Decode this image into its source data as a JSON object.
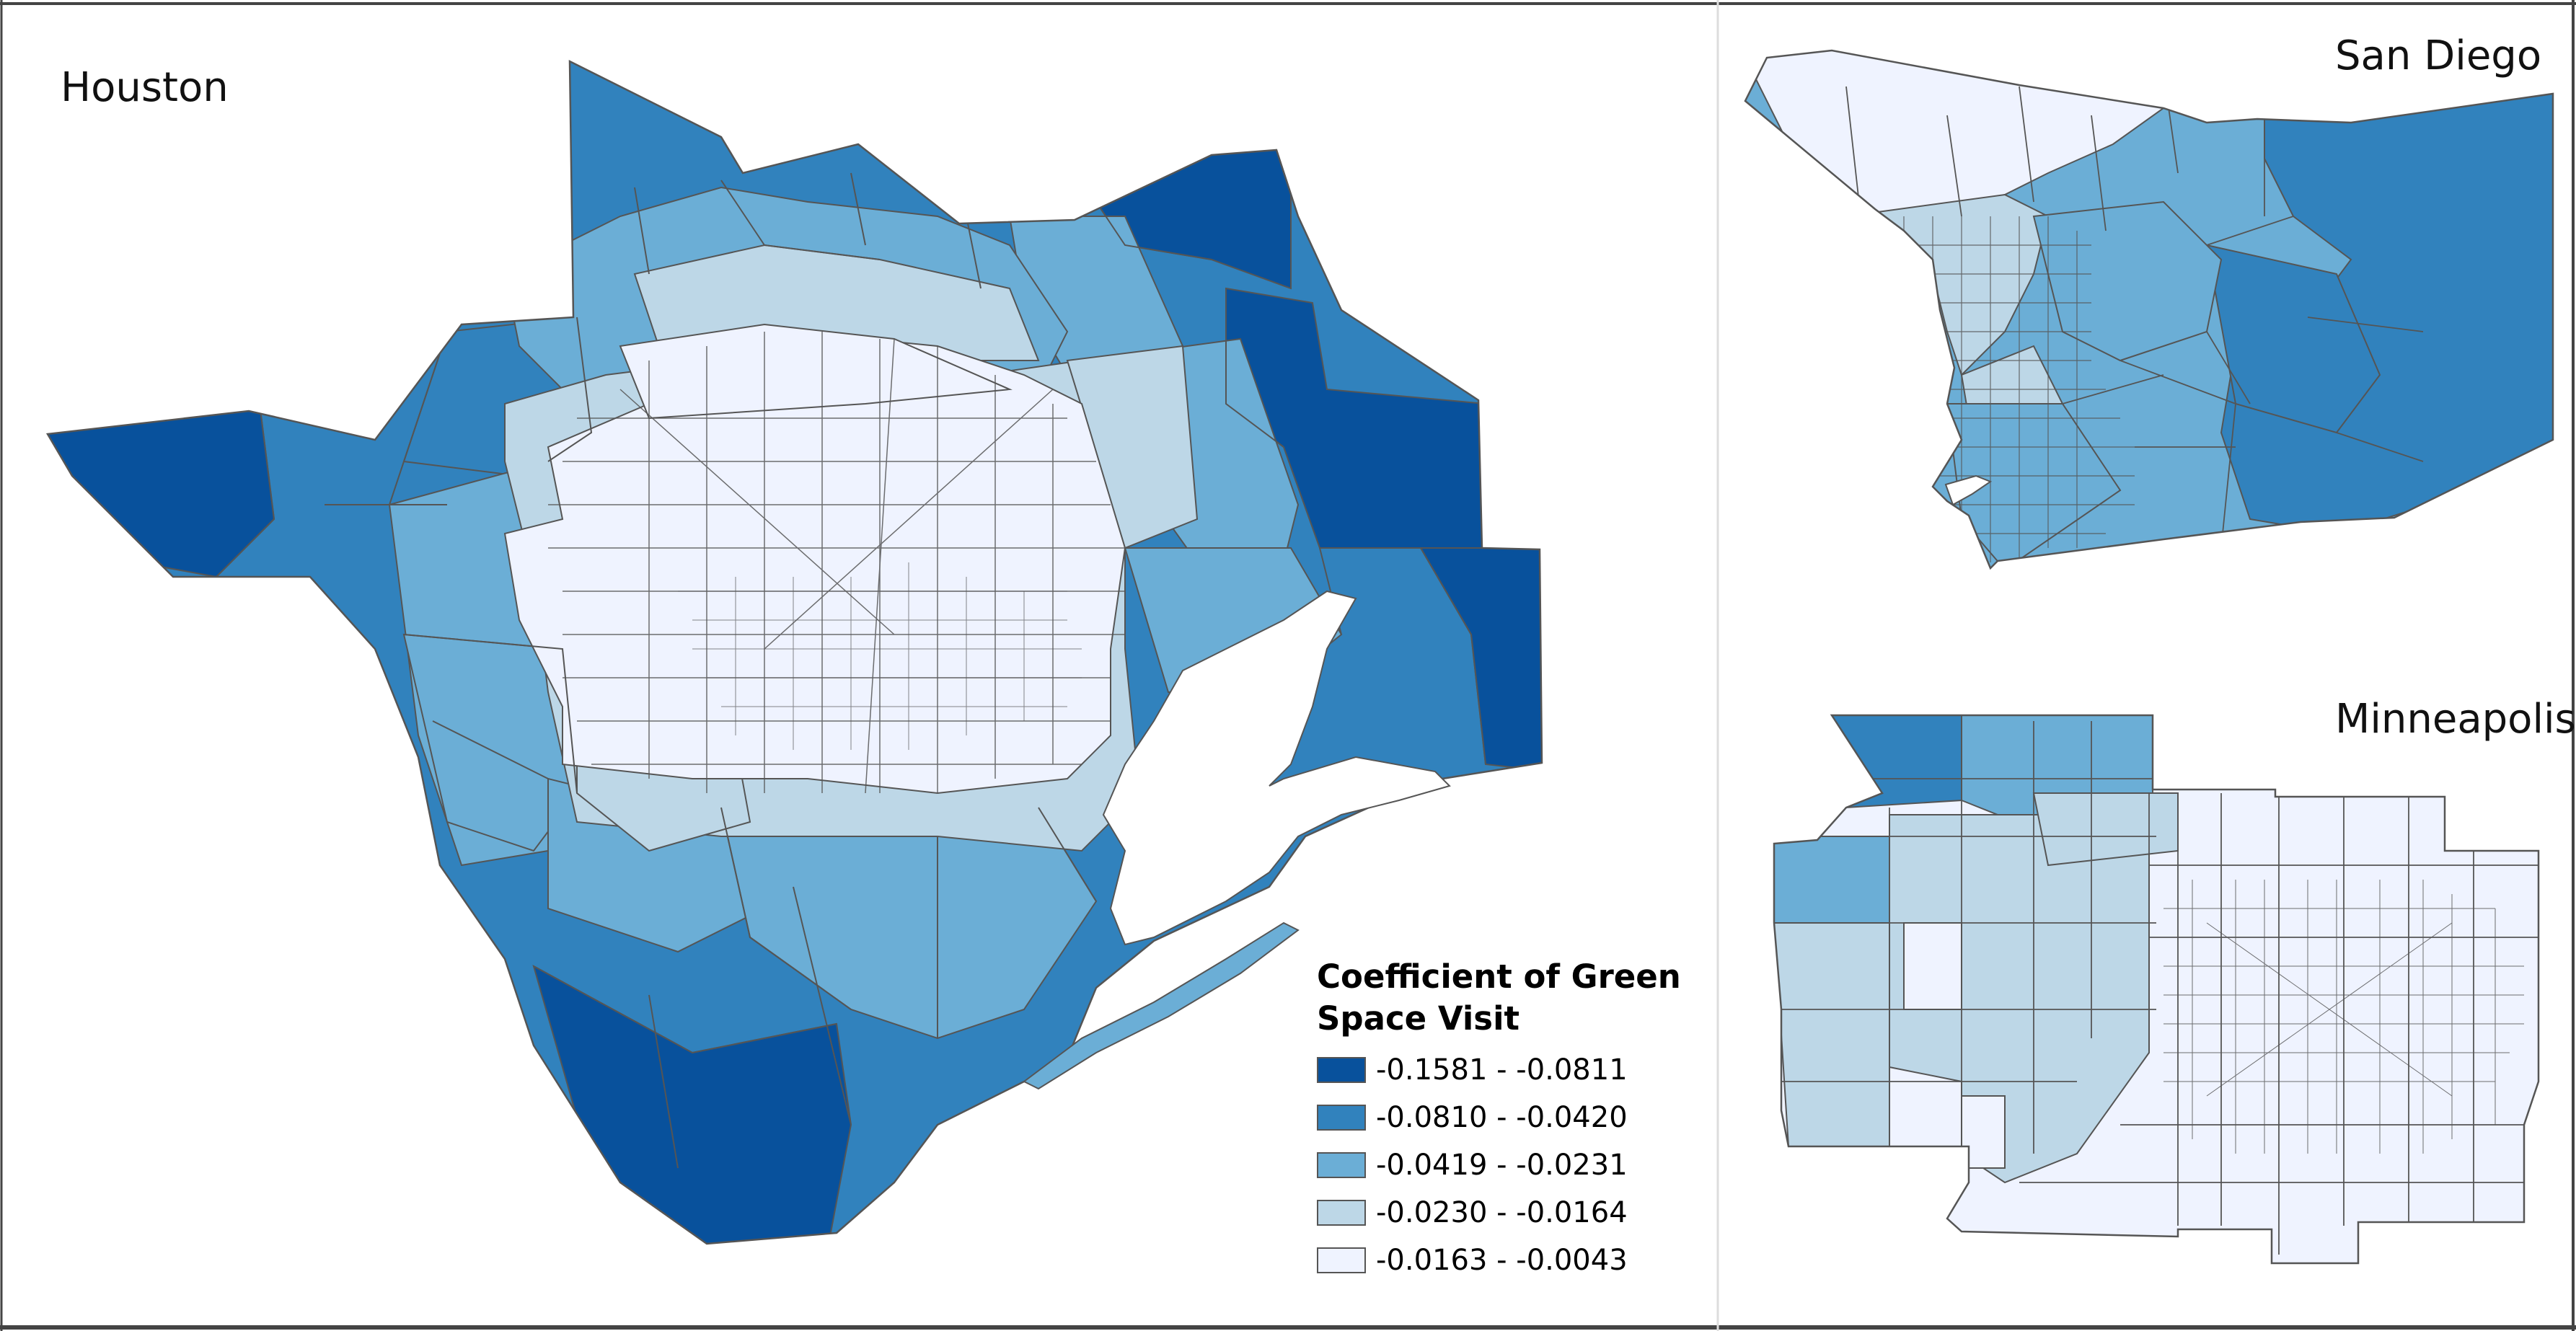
{
  "maps": {
    "houston": {
      "title": "Houston"
    },
    "san_diego": {
      "title": "San Diego"
    },
    "minneapolis": {
      "title": "Minneapolis"
    }
  },
  "legend": {
    "title_line1": "Coefficient of Green",
    "title_line2": "Space Visit",
    "classes": [
      {
        "label": "-0.1581 - -0.0811",
        "color": "#08519c"
      },
      {
        "label": "-0.0810 - -0.0420",
        "color": "#3182bd"
      },
      {
        "label": "-0.0419 - -0.0231",
        "color": "#6baed6"
      },
      {
        "label": "-0.0230 - -0.0164",
        "color": "#bdd7e7"
      },
      {
        "label": "-0.0163 - -0.0043",
        "color": "#eff3ff"
      }
    ]
  },
  "colors": {
    "outline": "#555555",
    "frame": "#444444"
  }
}
